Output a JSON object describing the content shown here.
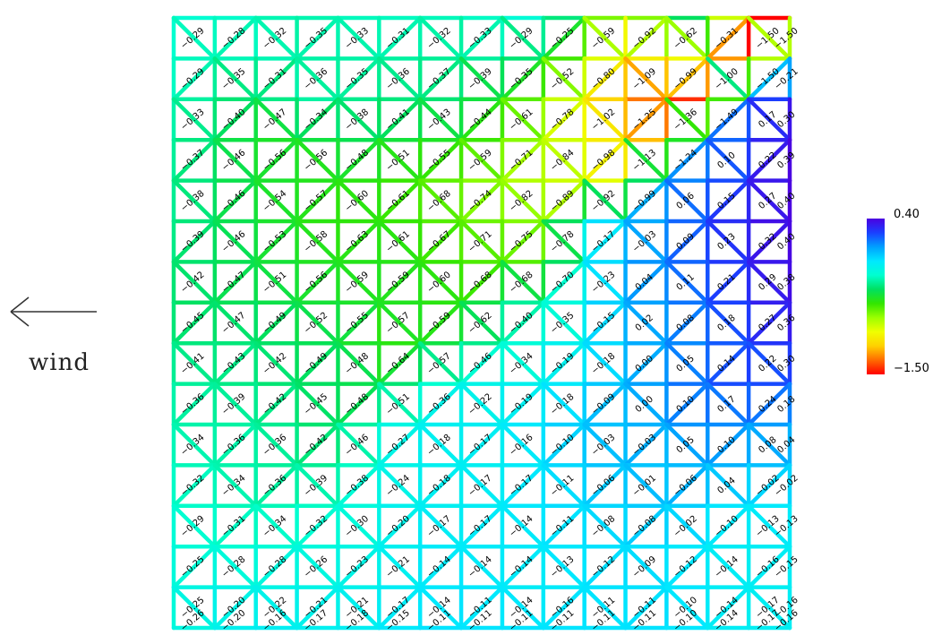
{
  "wind": {
    "label": "wind",
    "arrow_icon": "left-arrow-icon"
  },
  "colorbar": {
    "max_label": "0.40",
    "min_label": "−1.50",
    "range": [
      -1.5,
      0.4
    ],
    "stops": [
      "#ff0000",
      "#ff6a00",
      "#ffd000",
      "#f0ff00",
      "#9cff00",
      "#33e600",
      "#00e060",
      "#00ffd0",
      "#00e8ff",
      "#00a0ff",
      "#1a40ff",
      "#4b00e0"
    ]
  },
  "chart_data": {
    "type": "heatmap",
    "description_units": "pressure coefficient",
    "grid_rows": [
      [
        "-0.29",
        "-0.28",
        "-0.32",
        "-0.35",
        "-0.33",
        "-0.31",
        "-0.32",
        "-0.33",
        "-0.29",
        "-0.25",
        "-0.59",
        "-0.92",
        "-0.62",
        "-0.31",
        "-1.50",
        "-1.50"
      ],
      [
        "-0.29",
        "-0.35",
        "-0.31",
        "-0.36",
        "-0.35",
        "-0.36",
        "-0.37",
        "-0.39",
        "-0.35",
        "-0.52",
        "-0.80",
        "-1.09",
        "-0.99",
        "-1.00",
        "-1.50",
        "-0.21"
      ],
      [
        "-0.33",
        "-0.40",
        "-0.47",
        "-0.34",
        "-0.38",
        "-0.41",
        "-0.43",
        "-0.44",
        "-0.61",
        "-0.78",
        "-1.02",
        "-1.25",
        "-1.36",
        "-1.49",
        "0.17",
        "0.30"
      ],
      [
        "-0.37",
        "-0.46",
        "-0.56",
        "-0.56",
        "-0.48",
        "-0.51",
        "-0.55",
        "-0.59",
        "-0.71",
        "-0.84",
        "-0.98",
        "-1.13",
        "-1.24",
        "0.10",
        "0.22",
        "0.39"
      ],
      [
        "-0.38",
        "-0.46",
        "-0.54",
        "-0.57",
        "-0.60",
        "-0.61",
        "-0.68",
        "-0.74",
        "-0.82",
        "-0.89",
        "-0.92",
        "-0.99",
        "0.06",
        "0.15",
        "0.27",
        "0.40"
      ],
      [
        "-0.39",
        "-0.46",
        "-0.53",
        "-0.58",
        "-0.63",
        "-0.61",
        "-0.67",
        "-0.71",
        "-0.75",
        "-0.78",
        "-0.17",
        "-0.03",
        "0.09",
        "0.23",
        "0.32",
        "0.40"
      ],
      [
        "-0.42",
        "-0.47",
        "-0.51",
        "-0.56",
        "-0.59",
        "-0.59",
        "-0.60",
        "-0.68",
        "-0.68",
        "-0.70",
        "-0.23",
        "0.04",
        "0.11",
        "0.21",
        "0.29",
        "0.38"
      ],
      [
        "-0.45",
        "-0.47",
        "-0.49",
        "-0.52",
        "-0.55",
        "-0.57",
        "-0.59",
        "-0.62",
        "-0.40",
        "-0.35",
        "-0.15",
        "0.02",
        "0.08",
        "0.18",
        "0.27",
        "0.36"
      ],
      [
        "-0.41",
        "-0.43",
        "-0.42",
        "-0.49",
        "-0.48",
        "-0.64",
        "-0.57",
        "-0.46",
        "-0.34",
        "-0.19",
        "-0.18",
        "0.00",
        "0.05",
        "0.14",
        "0.22",
        "0.30"
      ],
      [
        "-0.36",
        "-0.39",
        "-0.42",
        "-0.45",
        "-0.48",
        "-0.51",
        "-0.36",
        "-0.22",
        "-0.19",
        "-0.18",
        "-0.09",
        "0.00",
        "0.10",
        "0.17",
        "0.24",
        "0.18"
      ],
      [
        "-0.34",
        "-0.36",
        "-0.36",
        "-0.42",
        "-0.46",
        "-0.27",
        "-0.18",
        "-0.17",
        "-0.16",
        "-0.10",
        "-0.03",
        "-0.03",
        "0.05",
        "0.10",
        "0.08",
        "0.04"
      ],
      [
        "-0.32",
        "-0.34",
        "-0.36",
        "-0.39",
        "-0.38",
        "-0.24",
        "-0.18",
        "-0.17",
        "-0.17",
        "-0.11",
        "-0.06",
        "-0.01",
        "-0.06",
        "0.04",
        "-0.02",
        "-0.02"
      ],
      [
        "-0.29",
        "-0.31",
        "-0.34",
        "-0.32",
        "-0.30",
        "-0.20",
        "-0.17",
        "-0.17",
        "-0.14",
        "-0.11",
        "-0.08",
        "-0.08",
        "-0.02",
        "-0.10",
        "-0.13",
        "-0.13"
      ],
      [
        "-0.25",
        "-0.28",
        "-0.28",
        "-0.26",
        "-0.23",
        "-0.21",
        "-0.14",
        "-0.14",
        "-0.14",
        "-0.13",
        "-0.12",
        "-0.09",
        "-0.12",
        "-0.14",
        "-0.16",
        "-0.15"
      ],
      [
        "-0.25",
        "-0.20",
        "-0.22",
        "-0.21",
        "-0.21",
        "-0.17",
        "-0.14",
        "-0.11",
        "-0.14",
        "-0.16",
        "-0.11",
        "-0.11",
        "-0.10",
        "-0.14",
        "-0.17",
        "-0.16"
      ],
      [
        "-0.26",
        "-0.20",
        "-0.16",
        "-0.17",
        "-0.18",
        "-0.15",
        "-0.11",
        "-0.11",
        "-0.11",
        "-0.11",
        "-0.11",
        "-0.11",
        "-0.10",
        "-0.14",
        "-0.17",
        "-0.16"
      ]
    ]
  }
}
